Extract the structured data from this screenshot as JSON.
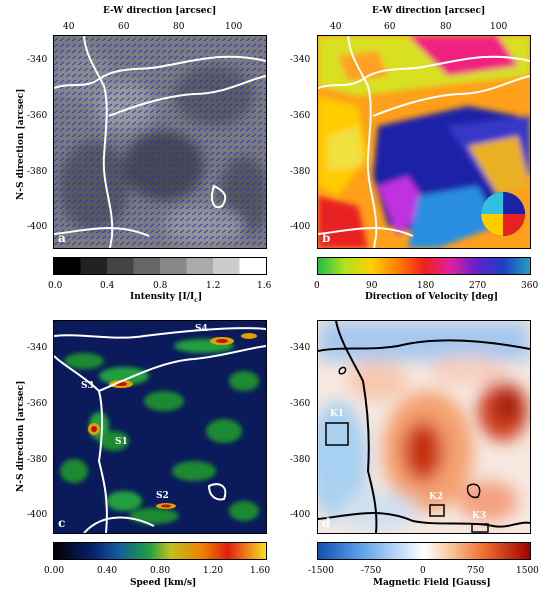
{
  "figure": {
    "top_x_axis_label": "E-W direction [arcsec]",
    "y_axis_label": "N-S direction [arcsec]",
    "x_ticks": [
      "40",
      "60",
      "80",
      "100"
    ],
    "y_ticks": [
      "-340",
      "-360",
      "-380",
      "-400"
    ]
  },
  "panels": {
    "a": {
      "letter": "a",
      "colorbar_label": "Intensity [I/I",
      "colorbar_label_sub": "c",
      "colorbar_label_end": "]",
      "colorbar_ticks": [
        "0.0",
        "0.4",
        "0.8",
        "1.2",
        "1.6"
      ]
    },
    "b": {
      "letter": "b",
      "colorbar_label": "Direction of Velocity [deg]",
      "colorbar_ticks": [
        "0",
        "90",
        "180",
        "270",
        "360"
      ]
    },
    "c": {
      "letter": "c",
      "colorbar_label": "Speed [km/s]",
      "colorbar_ticks": [
        "0.00",
        "0.40",
        "0.80",
        "1.20",
        "1.60"
      ],
      "labels": [
        "S4",
        "S3",
        "S1",
        "S2"
      ]
    },
    "d": {
      "letter": "d",
      "colorbar_label": "Magnetic Field [Gauss]",
      "colorbar_ticks": [
        "-1500",
        "-750",
        "0",
        "750",
        "1500"
      ],
      "labels": [
        "K1",
        "K2",
        "K3"
      ]
    }
  },
  "colors": {
    "vector": "#1e2fd6",
    "contour_light": "#ffffff",
    "contour_dark": "#000000"
  }
}
